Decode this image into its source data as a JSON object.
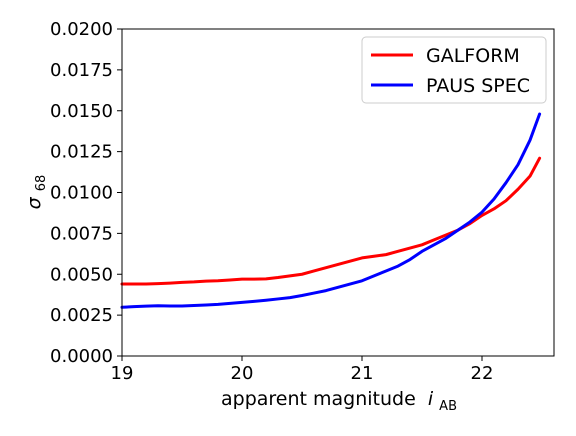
{
  "chart_data": {
    "type": "line",
    "xlabel": "apparent magnitude",
    "xlabel_symbol": "i",
    "xlabel_subscript": "AB",
    "ylabel_symbol": "σ",
    "ylabel_subscript": "68",
    "xlim": [
      19.0,
      22.6
    ],
    "ylim": [
      0.0,
      0.02
    ],
    "xticks": [
      19,
      20,
      21,
      22
    ],
    "xtick_labels": [
      "19",
      "20",
      "21",
      "22"
    ],
    "yticks": [
      0.0,
      0.0025,
      0.005,
      0.0075,
      0.01,
      0.0125,
      0.015,
      0.0175,
      0.02
    ],
    "ytick_labels": [
      "0.0000",
      "0.0025",
      "0.0050",
      "0.0075",
      "0.0100",
      "0.0125",
      "0.0150",
      "0.0175",
      "0.0200"
    ],
    "grid": false,
    "legend_position": "top-right",
    "series": [
      {
        "name": "GALFORM",
        "color": "#ff0000",
        "x": [
          19.0,
          19.1,
          19.2,
          19.3,
          19.4,
          19.5,
          19.6,
          19.7,
          19.8,
          19.9,
          20.0,
          20.1,
          20.2,
          20.3,
          20.4,
          20.5,
          20.6,
          20.7,
          20.8,
          20.9,
          21.0,
          21.1,
          21.2,
          21.3,
          21.4,
          21.5,
          21.6,
          21.7,
          21.8,
          21.9,
          22.0,
          22.1,
          22.2,
          22.3,
          22.4,
          22.48
        ],
        "y": [
          0.0044,
          0.0044,
          0.0044,
          0.00443,
          0.00446,
          0.0045,
          0.00453,
          0.00458,
          0.0046,
          0.00465,
          0.0047,
          0.0047,
          0.00472,
          0.0048,
          0.0049,
          0.005,
          0.0052,
          0.0054,
          0.0056,
          0.0058,
          0.006,
          0.0061,
          0.0062,
          0.0064,
          0.0066,
          0.0068,
          0.0071,
          0.0074,
          0.0077,
          0.0081,
          0.0086,
          0.009,
          0.0095,
          0.0102,
          0.011,
          0.0121
        ]
      },
      {
        "name": "PAUS SPEC",
        "color": "#0000ff",
        "x": [
          19.0,
          19.1,
          19.2,
          19.3,
          19.4,
          19.5,
          19.6,
          19.7,
          19.8,
          19.9,
          20.0,
          20.1,
          20.2,
          20.3,
          20.4,
          20.5,
          20.6,
          20.7,
          20.8,
          20.9,
          21.0,
          21.1,
          21.2,
          21.3,
          21.4,
          21.5,
          21.6,
          21.7,
          21.8,
          21.9,
          22.0,
          22.1,
          22.2,
          22.3,
          22.4,
          22.48
        ],
        "y": [
          0.00298,
          0.00302,
          0.00305,
          0.00307,
          0.00306,
          0.00306,
          0.00309,
          0.00312,
          0.00316,
          0.00322,
          0.00328,
          0.00334,
          0.00341,
          0.00349,
          0.00357,
          0.0037,
          0.00385,
          0.004,
          0.0042,
          0.0044,
          0.0046,
          0.0049,
          0.0052,
          0.0055,
          0.0059,
          0.0064,
          0.0068,
          0.0072,
          0.0077,
          0.0082,
          0.0088,
          0.0096,
          0.0106,
          0.0117,
          0.0132,
          0.0148
        ]
      }
    ]
  }
}
